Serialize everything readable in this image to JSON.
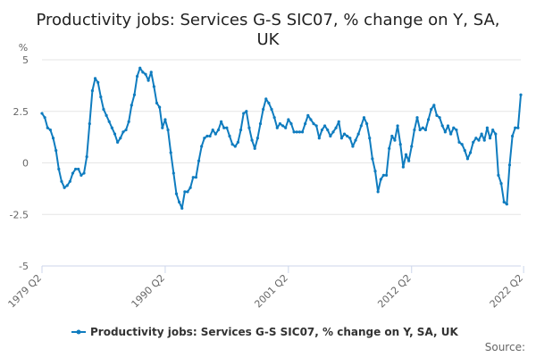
{
  "chart_data": {
    "type": "line",
    "title_line1": "Productivity jobs: Services G-S SIC07, % change on Y, SA,",
    "title_line2": "UK",
    "y_unit": "%",
    "ylim": [
      -5,
      5
    ],
    "y_ticks": [
      {
        "value": 5,
        "label": "5"
      },
      {
        "value": 2.5,
        "label": "2.5"
      },
      {
        "value": 0,
        "label": "0"
      },
      {
        "value": -2.5,
        "label": "-2.5"
      },
      {
        "value": -5,
        "label": "-5"
      }
    ],
    "x_tick_labels": [
      {
        "index": 0,
        "label": "1979 Q2"
      },
      {
        "index": 44,
        "label": "1990 Q2"
      },
      {
        "index": 88,
        "label": "2001 Q2"
      },
      {
        "index": 132,
        "label": "2012 Q2"
      },
      {
        "index": 172,
        "label": "2022 Q2"
      }
    ],
    "grid": "horizontal",
    "legend_position": "bottom",
    "source_label": "Source:",
    "series": [
      {
        "name": "Productivity jobs: Services G-S SIC07, % change on Y, SA, UK",
        "color": "#0f7cbf",
        "values": [
          2.4,
          2.2,
          1.7,
          1.6,
          1.2,
          0.6,
          -0.3,
          -0.9,
          -1.2,
          -1.1,
          -0.9,
          -0.5,
          -0.3,
          -0.3,
          -0.6,
          -0.5,
          0.3,
          1.9,
          3.5,
          4.1,
          3.9,
          3.2,
          2.6,
          2.3,
          2.0,
          1.7,
          1.4,
          1.0,
          1.2,
          1.5,
          1.6,
          2.0,
          2.8,
          3.3,
          4.2,
          4.6,
          4.4,
          4.3,
          4.0,
          4.4,
          3.7,
          2.9,
          2.7,
          1.7,
          2.1,
          1.6,
          0.5,
          -0.5,
          -1.5,
          -1.9,
          -2.2,
          -1.4,
          -1.4,
          -1.2,
          -0.7,
          -0.7,
          0.1,
          0.8,
          1.2,
          1.3,
          1.3,
          1.6,
          1.4,
          1.6,
          2.0,
          1.7,
          1.7,
          1.3,
          0.9,
          0.8,
          1.0,
          1.6,
          2.4,
          2.5,
          1.7,
          1.1,
          0.7,
          1.2,
          1.9,
          2.6,
          3.1,
          2.9,
          2.6,
          2.2,
          1.7,
          1.9,
          1.8,
          1.7,
          2.1,
          1.9,
          1.5,
          1.5,
          1.5,
          1.5,
          1.9,
          2.3,
          2.1,
          1.9,
          1.8,
          1.2,
          1.6,
          1.8,
          1.6,
          1.3,
          1.5,
          1.7,
          2.0,
          1.2,
          1.4,
          1.3,
          1.2,
          0.8,
          1.1,
          1.4,
          1.8,
          2.2,
          1.9,
          1.2,
          0.2,
          -0.4,
          -1.4,
          -0.8,
          -0.6,
          -0.6,
          0.7,
          1.3,
          1.1,
          1.8,
          0.9,
          -0.2,
          0.4,
          0.1,
          0.8,
          1.6,
          2.2,
          1.6,
          1.7,
          1.6,
          2.1,
          2.6,
          2.8,
          2.3,
          2.2,
          1.8,
          1.5,
          1.8,
          1.4,
          1.7,
          1.6,
          1.0,
          0.9,
          0.6,
          0.2,
          0.5,
          1.0,
          1.2,
          1.1,
          1.4,
          1.1,
          1.7,
          1.2,
          1.6,
          1.4,
          -0.6,
          -1.0,
          -1.9,
          -2.0,
          -0.1,
          1.3,
          1.7,
          1.7,
          3.3
        ]
      }
    ]
  }
}
